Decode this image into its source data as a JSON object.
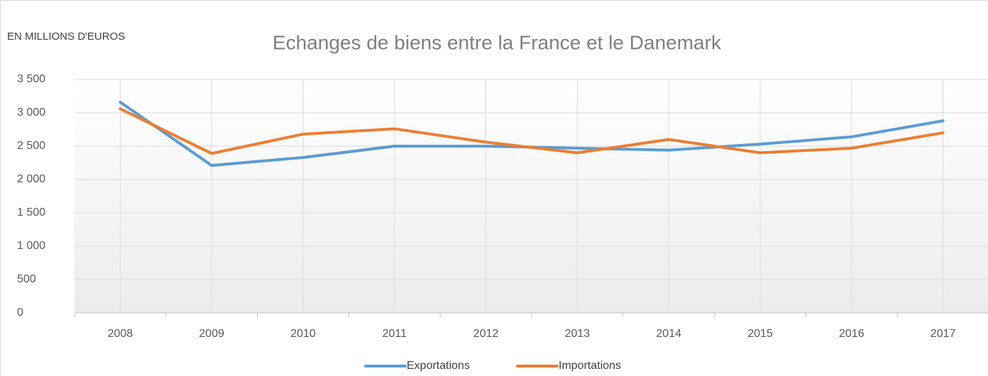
{
  "chart_data": {
    "type": "line",
    "title": "Echanges de biens entre la France et le Danemark",
    "y_label": "EN MILLIONS D'EUROS",
    "categories": [
      "2008",
      "2009",
      "2010",
      "2011",
      "2012",
      "2013",
      "2014",
      "2015",
      "2016",
      "2017"
    ],
    "series": [
      {
        "name": "Exportations",
        "color": "#5b9bd5",
        "values": [
          3160,
          2210,
          2330,
          2500,
          2500,
          2470,
          2440,
          2530,
          2640,
          2880
        ]
      },
      {
        "name": "Importations",
        "color": "#ed7d31",
        "values": [
          3060,
          2390,
          2680,
          2760,
          2560,
          2400,
          2600,
          2400,
          2470,
          2700
        ]
      }
    ],
    "ylim": [
      0,
      3500
    ],
    "yticks": [
      0,
      500,
      {
        "value": 1000,
        "label": "1 000"
      },
      {
        "value": 1500,
        "label": "1 500"
      },
      {
        "value": 2000,
        "label": "2 000"
      },
      {
        "value": 2500,
        "label": "2 500"
      },
      {
        "value": 3000,
        "label": "3 000"
      },
      {
        "value": 3500,
        "label": "3 500"
      }
    ],
    "grid": true,
    "legend": "bottom"
  }
}
